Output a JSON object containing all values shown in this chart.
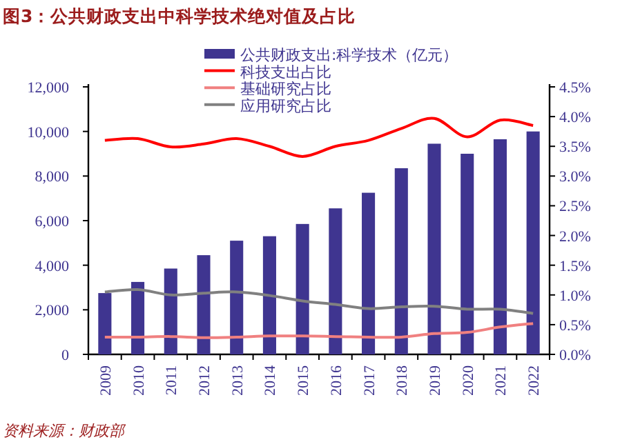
{
  "chart_data": {
    "type": "bar",
    "title": "图3：公共财政支出中科学技术绝对值及占比",
    "categories": [
      "2009",
      "2010",
      "2011",
      "2012",
      "2013",
      "2014",
      "2015",
      "2016",
      "2017",
      "2018",
      "2019",
      "2020",
      "2021",
      "2022"
    ],
    "series": [
      {
        "name": "公共财政支出:科学技术（亿元）",
        "color": "#3f3590",
        "values": [
          2750,
          3250,
          3850,
          4450,
          5100,
          5300,
          5850,
          6550,
          7250,
          8350,
          9450,
          9000,
          9650,
          10000
        ]
      },
      {
        "name": "科技支出占比",
        "type": "line",
        "axis": "y2",
        "color": "#ff0000",
        "values": [
          3.6,
          3.63,
          3.49,
          3.54,
          3.63,
          3.5,
          3.33,
          3.5,
          3.6,
          3.8,
          3.97,
          3.66,
          3.94,
          3.85
        ]
      },
      {
        "name": "基础研究占比",
        "type": "line",
        "axis": "y2",
        "color": "#f08080",
        "values": [
          0.29,
          0.29,
          0.3,
          0.28,
          0.29,
          0.31,
          0.31,
          0.3,
          0.29,
          0.29,
          0.35,
          0.37,
          0.46,
          0.52
        ]
      },
      {
        "name": "应用研究占比",
        "type": "line",
        "axis": "y2",
        "color": "#808080",
        "values": [
          1.05,
          1.09,
          1.0,
          1.03,
          1.05,
          0.99,
          0.9,
          0.84,
          0.77,
          0.8,
          0.81,
          0.76,
          0.76,
          0.69
        ]
      }
    ],
    "ylim": [
      0,
      12000
    ],
    "yticks": [
      0,
      {
        "value": 2000,
        "label": "2,000"
      },
      {
        "value": 4000,
        "label": "4,000"
      },
      {
        "value": 6000,
        "label": "6,000"
      },
      {
        "value": 8000,
        "label": "8,000"
      },
      {
        "value": 10000,
        "label": "10,000"
      },
      {
        "value": 12000,
        "label": "12,000"
      }
    ],
    "y2lim": [
      0,
      4.5
    ],
    "y2ticks": [
      {
        "value": 0,
        "label": "0.0%"
      },
      {
        "value": 0.5,
        "label": "0.5%"
      },
      {
        "value": 1,
        "label": "1.0%"
      },
      {
        "value": 1.5,
        "label": "1.5%"
      },
      {
        "value": 2,
        "label": "2.0%"
      },
      {
        "value": 2.5,
        "label": "2.5%"
      },
      {
        "value": 3,
        "label": "3.0%"
      },
      {
        "value": 3.5,
        "label": "3.5%"
      },
      {
        "value": 4,
        "label": "4.0%"
      },
      {
        "value": 4.5,
        "label": "4.5%"
      }
    ],
    "legend": "top",
    "annotations": [
      "资料来源：财政部"
    ]
  }
}
